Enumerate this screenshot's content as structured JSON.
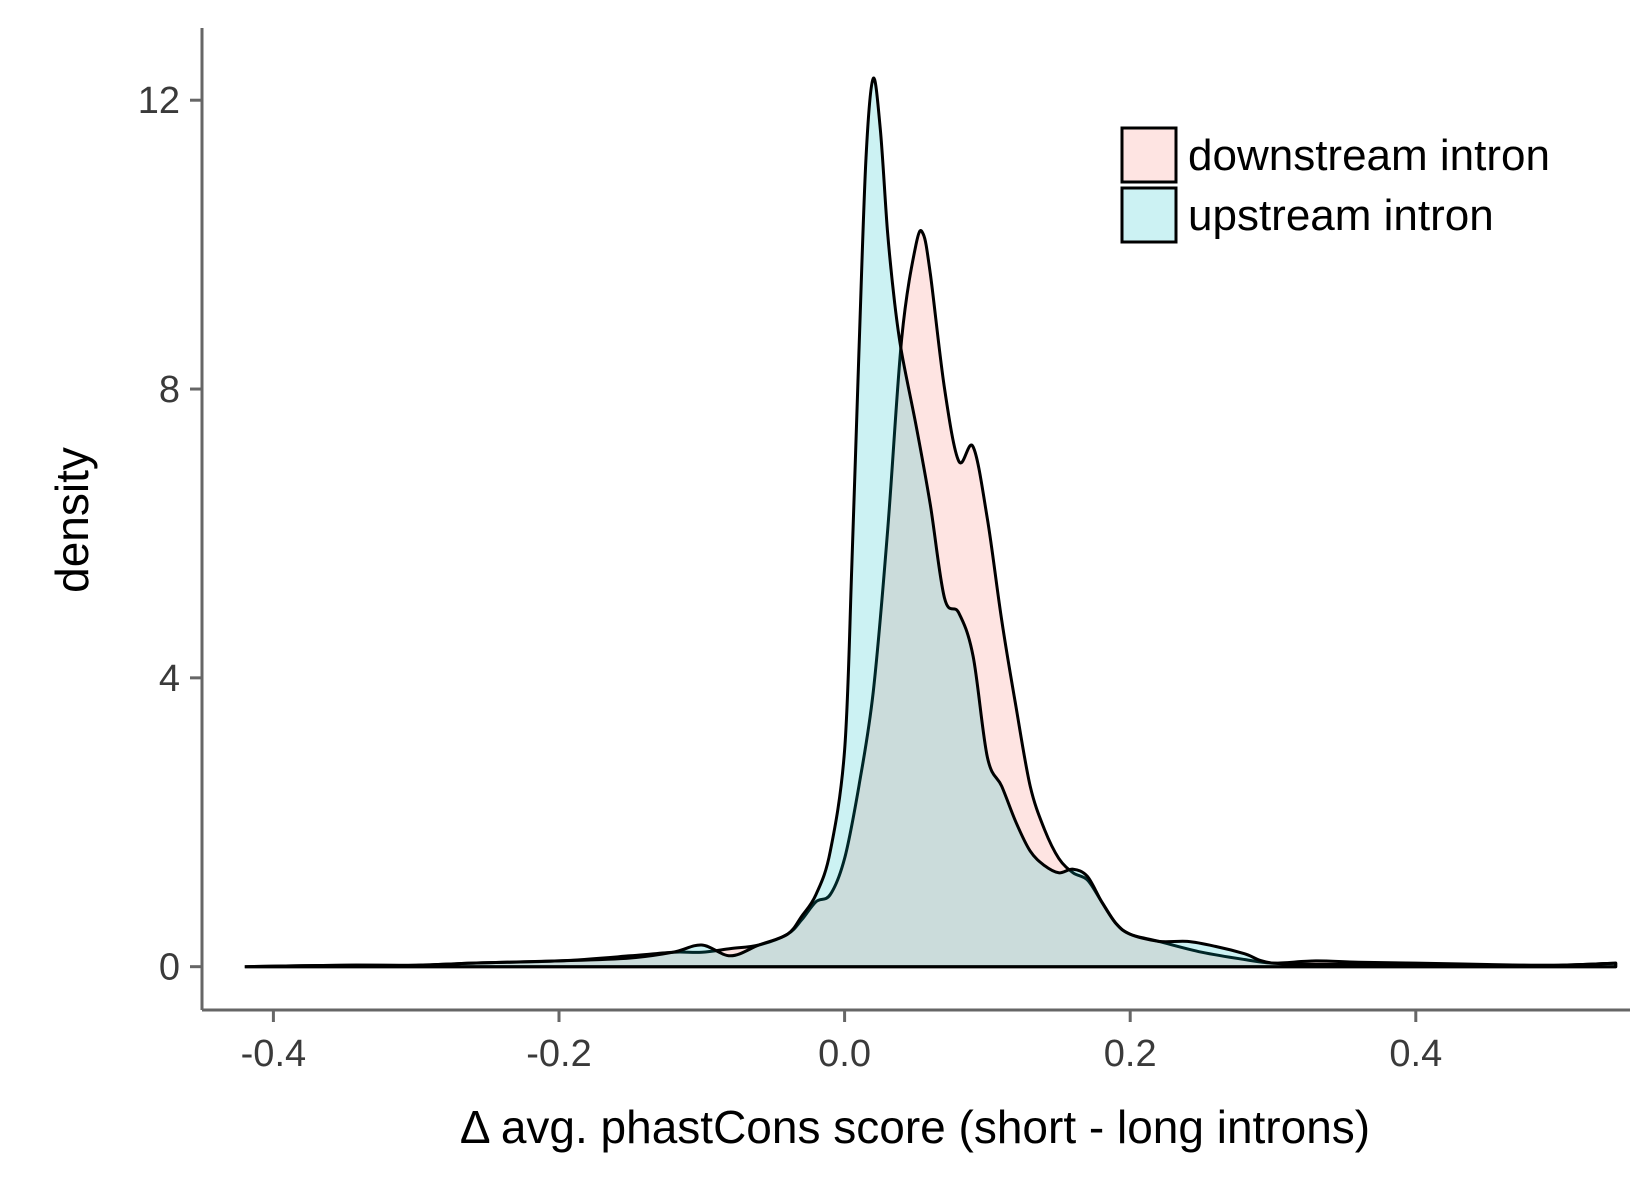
{
  "chart_data": {
    "type": "area",
    "xlabel": "Δ avg. phastCons score (short - long introns)",
    "ylabel": "density",
    "xlim": [
      -0.45,
      0.55
    ],
    "ylim": [
      -0.6,
      13.0
    ],
    "x_ticks": [
      -0.4,
      -0.2,
      0.0,
      0.2,
      0.4
    ],
    "x_tick_labels": [
      "-0.4",
      "-0.2",
      "0.0",
      "0.2",
      "0.4"
    ],
    "y_ticks": [
      0,
      4,
      8,
      12
    ],
    "y_tick_labels": [
      "0",
      "4",
      "8",
      "12"
    ],
    "grid": false,
    "legend_position": "top-right",
    "series": [
      {
        "name": "downstream intron",
        "color": "#F8766D",
        "x": [
          -0.42,
          -0.35,
          -0.3,
          -0.26,
          -0.2,
          -0.15,
          -0.12,
          -0.1,
          -0.08,
          -0.06,
          -0.04,
          -0.03,
          -0.02,
          -0.01,
          0.0,
          0.01,
          0.02,
          0.03,
          0.04,
          0.05,
          0.055,
          0.06,
          0.07,
          0.08,
          0.09,
          0.1,
          0.11,
          0.12,
          0.13,
          0.14,
          0.15,
          0.16,
          0.17,
          0.18,
          0.19,
          0.2,
          0.22,
          0.25,
          0.28,
          0.3,
          0.33,
          0.36,
          0.4,
          0.45,
          0.5,
          0.54
        ],
        "y": [
          0.0,
          0.02,
          0.02,
          0.05,
          0.08,
          0.15,
          0.2,
          0.2,
          0.25,
          0.3,
          0.45,
          0.65,
          0.9,
          1.0,
          1.5,
          2.5,
          3.8,
          6.0,
          8.7,
          10.0,
          10.15,
          9.6,
          8.0,
          7.0,
          7.2,
          6.2,
          4.8,
          3.6,
          2.5,
          1.9,
          1.5,
          1.3,
          1.2,
          0.9,
          0.6,
          0.45,
          0.35,
          0.2,
          0.1,
          0.05,
          0.08,
          0.06,
          0.05,
          0.03,
          0.02,
          0.05
        ]
      },
      {
        "name": "upstream intron",
        "color": "#00BFC4",
        "x": [
          -0.42,
          -0.35,
          -0.3,
          -0.26,
          -0.2,
          -0.15,
          -0.12,
          -0.1,
          -0.08,
          -0.06,
          -0.04,
          -0.03,
          -0.02,
          -0.01,
          0.0,
          0.005,
          0.01,
          0.015,
          0.02,
          0.025,
          0.03,
          0.035,
          0.04,
          0.05,
          0.06,
          0.07,
          0.08,
          0.09,
          0.1,
          0.11,
          0.12,
          0.13,
          0.14,
          0.15,
          0.16,
          0.17,
          0.18,
          0.19,
          0.2,
          0.22,
          0.24,
          0.26,
          0.28,
          0.3,
          0.35,
          0.4,
          0.45,
          0.5,
          0.54
        ],
        "y": [
          0.0,
          0.02,
          0.02,
          0.05,
          0.08,
          0.12,
          0.2,
          0.3,
          0.15,
          0.3,
          0.45,
          0.7,
          1.0,
          1.6,
          3.0,
          5.5,
          8.5,
          11.2,
          12.3,
          11.6,
          10.2,
          9.2,
          8.5,
          7.5,
          6.4,
          5.1,
          4.9,
          4.3,
          2.9,
          2.5,
          2.0,
          1.6,
          1.4,
          1.3,
          1.35,
          1.25,
          0.9,
          0.6,
          0.45,
          0.35,
          0.35,
          0.28,
          0.18,
          0.05,
          0.03,
          0.02,
          0.02,
          0.02,
          0.05
        ]
      }
    ]
  }
}
